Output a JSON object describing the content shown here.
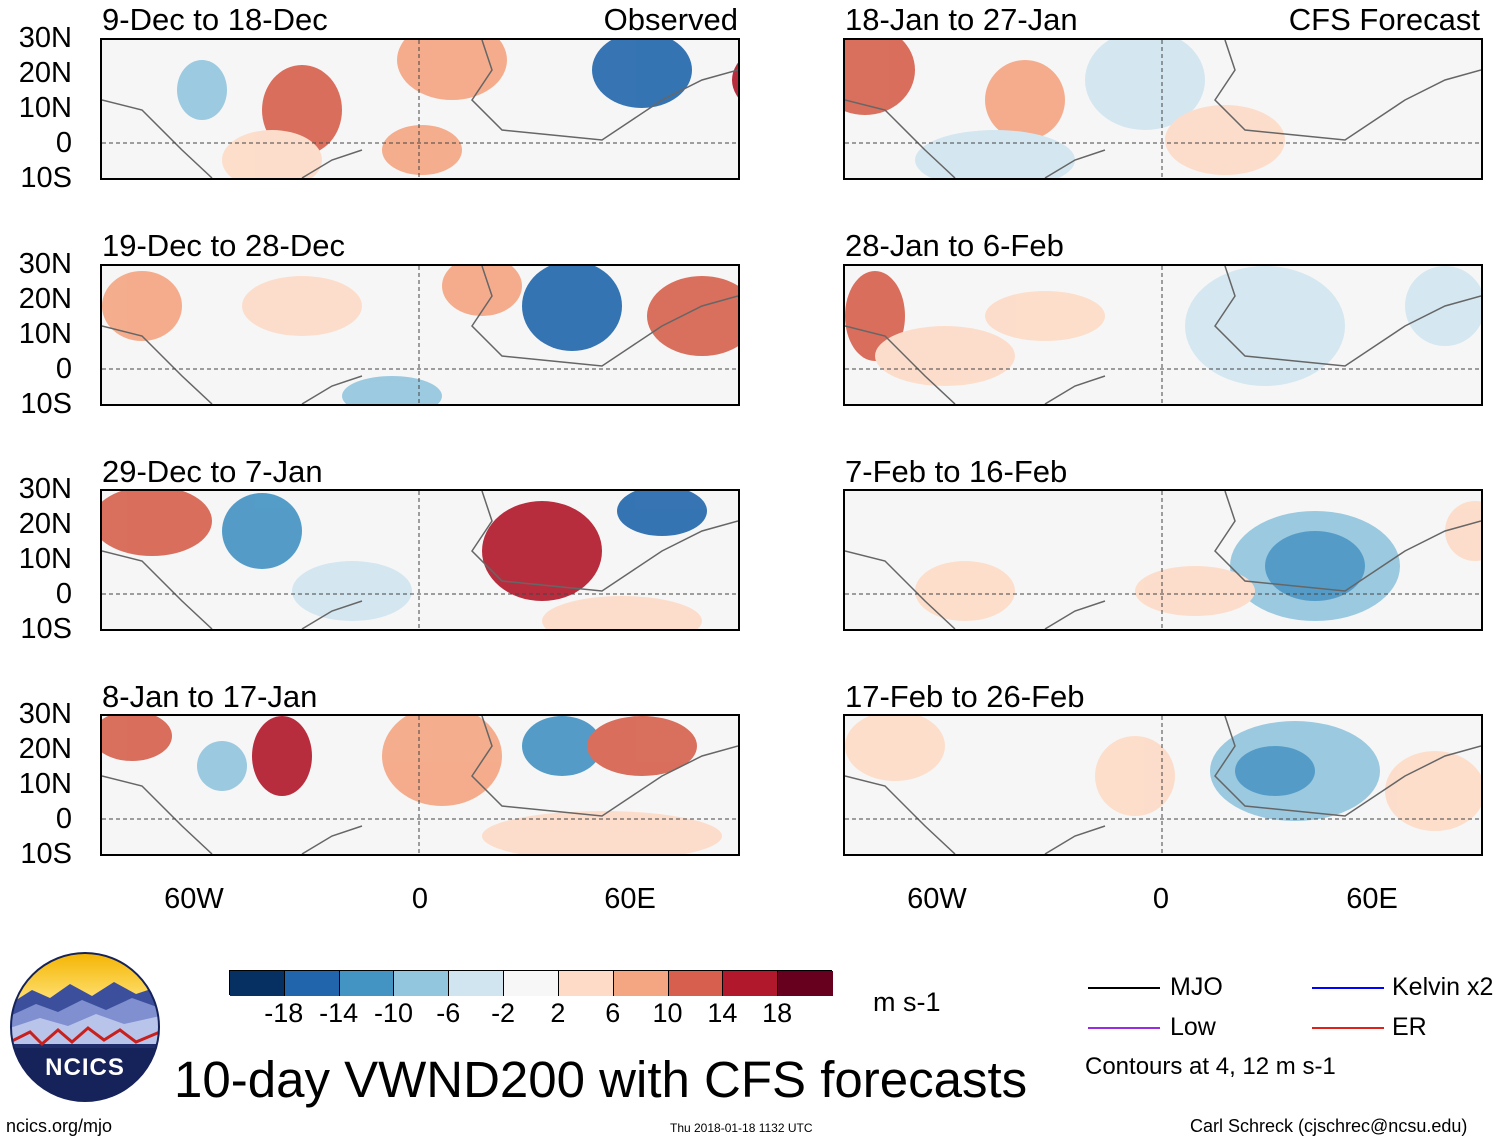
{
  "title": "10-day VWND200 with CFS forecasts",
  "source_url": "ncics.org/mjo",
  "timestamp": "Thu 2018-01-18 1132 UTC",
  "author": "Carl Schreck (cjschrec@ncsu.edu)",
  "logo": {
    "text": "NCICS",
    "icon": "ncics-mountain-logo"
  },
  "observed_label": "Observed",
  "forecast_label": "CFS Forecast",
  "lat_labels": [
    "30N",
    "20N",
    "10N",
    "0",
    "10S"
  ],
  "lon_labels": [
    "60W",
    "0",
    "60E"
  ],
  "panels": {
    "left": [
      {
        "title": "9-Dec to 18-Dec"
      },
      {
        "title": "19-Dec to 28-Dec"
      },
      {
        "title": "29-Dec to 7-Jan"
      },
      {
        "title": "8-Jan to 17-Jan"
      }
    ],
    "right": [
      {
        "title": "18-Jan to 27-Jan"
      },
      {
        "title": "28-Jan to 6-Feb"
      },
      {
        "title": "7-Feb to 16-Feb"
      },
      {
        "title": "17-Feb to 26-Feb"
      }
    ]
  },
  "colorbar": {
    "units": "m s-1",
    "ticks": [
      "-18",
      "-14",
      "-10",
      "-6",
      "-2",
      "2",
      "6",
      "10",
      "14",
      "18"
    ],
    "colors": [
      "#053061",
      "#2166ac",
      "#4393c3",
      "#92c5de",
      "#d1e5f0",
      "#f7f7f7",
      "#fddbc7",
      "#f4a582",
      "#d6604d",
      "#b2182b",
      "#67001f"
    ]
  },
  "legend": {
    "items": [
      {
        "label": "MJO",
        "color": "#000000"
      },
      {
        "label": "Kelvin x2",
        "color": "#0000ff"
      },
      {
        "label": "Low",
        "color": "#9a2be2"
      },
      {
        "label": "ER",
        "color": "#e0201b"
      }
    ],
    "note": "Contours at 4, 12 m s-1"
  }
}
